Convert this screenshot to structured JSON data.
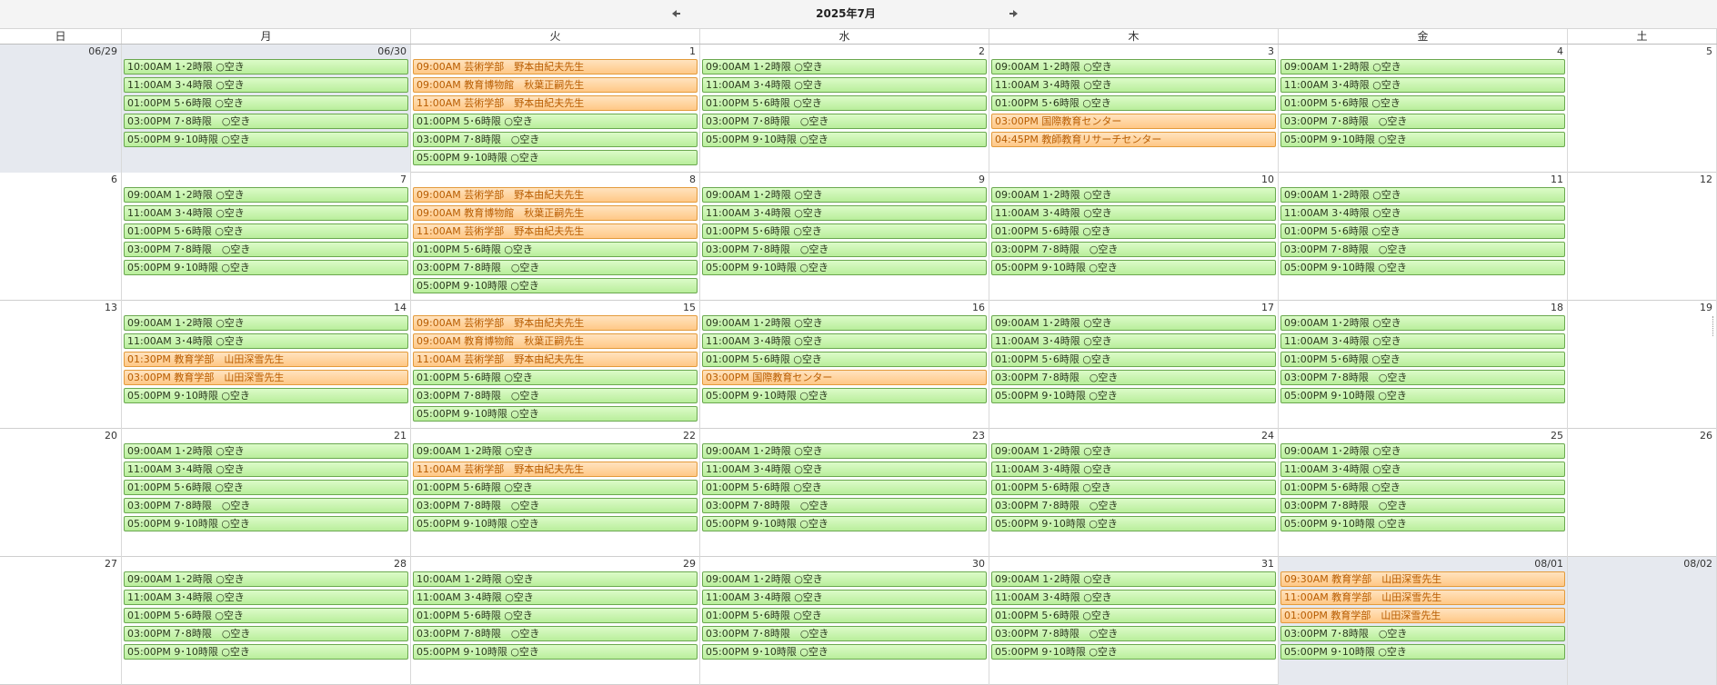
{
  "header": {
    "title": "2025年7月"
  },
  "weekdays": [
    "日",
    "月",
    "火",
    "水",
    "木",
    "金",
    "土"
  ],
  "weeks": [
    {
      "days": [
        {
          "label": "06/29",
          "other": true,
          "events": []
        },
        {
          "label": "06/30",
          "other": true,
          "events": [
            {
              "text": "10:00AM 1･2時限 ○空き",
              "type": "free"
            },
            {
              "text": "11:00AM 3･4時限 ○空き",
              "type": "free"
            },
            {
              "text": "01:00PM 5･6時限 ○空き",
              "type": "free"
            },
            {
              "text": "03:00PM 7･8時限　○空き",
              "type": "free"
            },
            {
              "text": "05:00PM 9･10時限 ○空き",
              "type": "free"
            }
          ]
        },
        {
          "label": "1",
          "other": false,
          "events": [
            {
              "text": "09:00AM 芸術学部　野本由紀夫先生",
              "type": "booked"
            },
            {
              "text": "09:00AM 教育博物館　秋葉正嗣先生",
              "type": "booked"
            },
            {
              "text": "11:00AM 芸術学部　野本由紀夫先生",
              "type": "booked"
            },
            {
              "text": "01:00PM 5･6時限 ○空き",
              "type": "free"
            },
            {
              "text": "03:00PM 7･8時限　○空き",
              "type": "free"
            },
            {
              "text": "05:00PM 9･10時限 ○空き",
              "type": "free"
            }
          ]
        },
        {
          "label": "2",
          "other": false,
          "events": [
            {
              "text": "09:00AM 1･2時限 ○空き",
              "type": "free"
            },
            {
              "text": "11:00AM 3･4時限 ○空き",
              "type": "free"
            },
            {
              "text": "01:00PM 5･6時限 ○空き",
              "type": "free"
            },
            {
              "text": "03:00PM 7･8時限　○空き",
              "type": "free"
            },
            {
              "text": "05:00PM 9･10時限 ○空き",
              "type": "free"
            }
          ]
        },
        {
          "label": "3",
          "other": false,
          "events": [
            {
              "text": "09:00AM 1･2時限 ○空き",
              "type": "free"
            },
            {
              "text": "11:00AM 3･4時限 ○空き",
              "type": "free"
            },
            {
              "text": "01:00PM 5･6時限 ○空き",
              "type": "free"
            },
            {
              "text": "03:00PM 国際教育センター",
              "type": "booked"
            },
            {
              "text": "04:45PM 教師教育リサーチセンター",
              "type": "booked"
            }
          ]
        },
        {
          "label": "4",
          "other": false,
          "events": [
            {
              "text": "09:00AM 1･2時限 ○空き",
              "type": "free"
            },
            {
              "text": "11:00AM 3･4時限 ○空き",
              "type": "free"
            },
            {
              "text": "01:00PM 5･6時限 ○空き",
              "type": "free"
            },
            {
              "text": "03:00PM 7･8時限　○空き",
              "type": "free"
            },
            {
              "text": "05:00PM 9･10時限 ○空き",
              "type": "free"
            }
          ]
        },
        {
          "label": "5",
          "other": false,
          "events": []
        }
      ]
    },
    {
      "days": [
        {
          "label": "6",
          "other": false,
          "events": []
        },
        {
          "label": "7",
          "other": false,
          "events": [
            {
              "text": "09:00AM 1･2時限 ○空き",
              "type": "free"
            },
            {
              "text": "11:00AM 3･4時限 ○空き",
              "type": "free"
            },
            {
              "text": "01:00PM 5･6時限 ○空き",
              "type": "free"
            },
            {
              "text": "03:00PM 7･8時限　○空き",
              "type": "free"
            },
            {
              "text": "05:00PM 9･10時限 ○空き",
              "type": "free"
            }
          ]
        },
        {
          "label": "8",
          "other": false,
          "events": [
            {
              "text": "09:00AM 芸術学部　野本由紀夫先生",
              "type": "booked"
            },
            {
              "text": "09:00AM 教育博物館　秋葉正嗣先生",
              "type": "booked"
            },
            {
              "text": "11:00AM 芸術学部　野本由紀夫先生",
              "type": "booked"
            },
            {
              "text": "01:00PM 5･6時限 ○空き",
              "type": "free"
            },
            {
              "text": "03:00PM 7･8時限　○空き",
              "type": "free"
            },
            {
              "text": "05:00PM 9･10時限 ○空き",
              "type": "free"
            }
          ]
        },
        {
          "label": "9",
          "other": false,
          "events": [
            {
              "text": "09:00AM 1･2時限 ○空き",
              "type": "free"
            },
            {
              "text": "11:00AM 3･4時限 ○空き",
              "type": "free"
            },
            {
              "text": "01:00PM 5･6時限 ○空き",
              "type": "free"
            },
            {
              "text": "03:00PM 7･8時限　○空き",
              "type": "free"
            },
            {
              "text": "05:00PM 9･10時限 ○空き",
              "type": "free"
            }
          ]
        },
        {
          "label": "10",
          "other": false,
          "events": [
            {
              "text": "09:00AM 1･2時限 ○空き",
              "type": "free"
            },
            {
              "text": "11:00AM 3･4時限 ○空き",
              "type": "free"
            },
            {
              "text": "01:00PM 5･6時限 ○空き",
              "type": "free"
            },
            {
              "text": "03:00PM 7･8時限　○空き",
              "type": "free"
            },
            {
              "text": "05:00PM 9･10時限 ○空き",
              "type": "free"
            }
          ]
        },
        {
          "label": "11",
          "other": false,
          "events": [
            {
              "text": "09:00AM 1･2時限 ○空き",
              "type": "free"
            },
            {
              "text": "11:00AM 3･4時限 ○空き",
              "type": "free"
            },
            {
              "text": "01:00PM 5･6時限 ○空き",
              "type": "free"
            },
            {
              "text": "03:00PM 7･8時限　○空き",
              "type": "free"
            },
            {
              "text": "05:00PM 9･10時限 ○空き",
              "type": "free"
            }
          ]
        },
        {
          "label": "12",
          "other": false,
          "events": []
        }
      ]
    },
    {
      "days": [
        {
          "label": "13",
          "other": false,
          "events": []
        },
        {
          "label": "14",
          "other": false,
          "events": [
            {
              "text": "09:00AM 1･2時限 ○空き",
              "type": "free"
            },
            {
              "text": "11:00AM 3･4時限 ○空き",
              "type": "free"
            },
            {
              "text": "01:30PM 教育学部　山田深雪先生",
              "type": "booked"
            },
            {
              "text": "03:00PM 教育学部　山田深雪先生",
              "type": "booked"
            },
            {
              "text": "05:00PM 9･10時限 ○空き",
              "type": "free"
            }
          ]
        },
        {
          "label": "15",
          "other": false,
          "events": [
            {
              "text": "09:00AM 芸術学部　野本由紀夫先生",
              "type": "booked"
            },
            {
              "text": "09:00AM 教育博物館　秋葉正嗣先生",
              "type": "booked"
            },
            {
              "text": "11:00AM 芸術学部　野本由紀夫先生",
              "type": "booked"
            },
            {
              "text": "01:00PM 5･6時限 ○空き",
              "type": "free"
            },
            {
              "text": "03:00PM 7･8時限　○空き",
              "type": "free"
            },
            {
              "text": "05:00PM 9･10時限 ○空き",
              "type": "free"
            }
          ]
        },
        {
          "label": "16",
          "other": false,
          "events": [
            {
              "text": "09:00AM 1･2時限 ○空き",
              "type": "free"
            },
            {
              "text": "11:00AM 3･4時限 ○空き",
              "type": "free"
            },
            {
              "text": "01:00PM 5･6時限 ○空き",
              "type": "free"
            },
            {
              "text": "03:00PM 国際教育センター",
              "type": "booked"
            },
            {
              "text": "05:00PM 9･10時限 ○空き",
              "type": "free"
            }
          ]
        },
        {
          "label": "17",
          "other": false,
          "events": [
            {
              "text": "09:00AM 1･2時限 ○空き",
              "type": "free"
            },
            {
              "text": "11:00AM 3･4時限 ○空き",
              "type": "free"
            },
            {
              "text": "01:00PM 5･6時限 ○空き",
              "type": "free"
            },
            {
              "text": "03:00PM 7･8時限　○空き",
              "type": "free"
            },
            {
              "text": "05:00PM 9･10時限 ○空き",
              "type": "free"
            }
          ]
        },
        {
          "label": "18",
          "other": false,
          "events": [
            {
              "text": "09:00AM 1･2時限 ○空き",
              "type": "free"
            },
            {
              "text": "11:00AM 3･4時限 ○空き",
              "type": "free"
            },
            {
              "text": "01:00PM 5･6時限 ○空き",
              "type": "free"
            },
            {
              "text": "03:00PM 7･8時限　○空き",
              "type": "free"
            },
            {
              "text": "05:00PM 9･10時限 ○空き",
              "type": "free"
            }
          ]
        },
        {
          "label": "19",
          "other": false,
          "events": []
        }
      ]
    },
    {
      "days": [
        {
          "label": "20",
          "other": false,
          "events": []
        },
        {
          "label": "21",
          "other": false,
          "events": [
            {
              "text": "09:00AM 1･2時限 ○空き",
              "type": "free"
            },
            {
              "text": "11:00AM 3･4時限 ○空き",
              "type": "free"
            },
            {
              "text": "01:00PM 5･6時限 ○空き",
              "type": "free"
            },
            {
              "text": "03:00PM 7･8時限　○空き",
              "type": "free"
            },
            {
              "text": "05:00PM 9･10時限 ○空き",
              "type": "free"
            }
          ]
        },
        {
          "label": "22",
          "other": false,
          "events": [
            {
              "text": "09:00AM 1･2時限 ○空き",
              "type": "free"
            },
            {
              "text": "11:00AM 芸術学部　野本由紀夫先生",
              "type": "booked"
            },
            {
              "text": "01:00PM 5･6時限 ○空き",
              "type": "free"
            },
            {
              "text": "03:00PM 7･8時限　○空き",
              "type": "free"
            },
            {
              "text": "05:00PM 9･10時限 ○空き",
              "type": "free"
            }
          ]
        },
        {
          "label": "23",
          "other": false,
          "events": [
            {
              "text": "09:00AM 1･2時限 ○空き",
              "type": "free"
            },
            {
              "text": "11:00AM 3･4時限 ○空き",
              "type": "free"
            },
            {
              "text": "01:00PM 5･6時限 ○空き",
              "type": "free"
            },
            {
              "text": "03:00PM 7･8時限　○空き",
              "type": "free"
            },
            {
              "text": "05:00PM 9･10時限 ○空き",
              "type": "free"
            }
          ]
        },
        {
          "label": "24",
          "other": false,
          "events": [
            {
              "text": "09:00AM 1･2時限 ○空き",
              "type": "free"
            },
            {
              "text": "11:00AM 3･4時限 ○空き",
              "type": "free"
            },
            {
              "text": "01:00PM 5･6時限 ○空き",
              "type": "free"
            },
            {
              "text": "03:00PM 7･8時限　○空き",
              "type": "free"
            },
            {
              "text": "05:00PM 9･10時限 ○空き",
              "type": "free"
            }
          ]
        },
        {
          "label": "25",
          "other": false,
          "events": [
            {
              "text": "09:00AM 1･2時限 ○空き",
              "type": "free"
            },
            {
              "text": "11:00AM 3･4時限 ○空き",
              "type": "free"
            },
            {
              "text": "01:00PM 5･6時限 ○空き",
              "type": "free"
            },
            {
              "text": "03:00PM 7･8時限　○空き",
              "type": "free"
            },
            {
              "text": "05:00PM 9･10時限 ○空き",
              "type": "free"
            }
          ]
        },
        {
          "label": "26",
          "other": false,
          "events": []
        }
      ]
    },
    {
      "days": [
        {
          "label": "27",
          "other": false,
          "events": []
        },
        {
          "label": "28",
          "other": false,
          "events": [
            {
              "text": "09:00AM 1･2時限 ○空き",
              "type": "free"
            },
            {
              "text": "11:00AM 3･4時限 ○空き",
              "type": "free"
            },
            {
              "text": "01:00PM 5･6時限 ○空き",
              "type": "free"
            },
            {
              "text": "03:00PM 7･8時限　○空き",
              "type": "free"
            },
            {
              "text": "05:00PM 9･10時限 ○空き",
              "type": "free"
            }
          ]
        },
        {
          "label": "29",
          "other": false,
          "events": [
            {
              "text": "10:00AM 1･2時限 ○空き",
              "type": "free"
            },
            {
              "text": "11:00AM 3･4時限 ○空き",
              "type": "free"
            },
            {
              "text": "01:00PM 5･6時限 ○空き",
              "type": "free"
            },
            {
              "text": "03:00PM 7･8時限　○空き",
              "type": "free"
            },
            {
              "text": "05:00PM 9･10時限 ○空き",
              "type": "free"
            }
          ]
        },
        {
          "label": "30",
          "other": false,
          "events": [
            {
              "text": "09:00AM 1･2時限 ○空き",
              "type": "free"
            },
            {
              "text": "11:00AM 3･4時限 ○空き",
              "type": "free"
            },
            {
              "text": "01:00PM 5･6時限 ○空き",
              "type": "free"
            },
            {
              "text": "03:00PM 7･8時限　○空き",
              "type": "free"
            },
            {
              "text": "05:00PM 9･10時限 ○空き",
              "type": "free"
            }
          ]
        },
        {
          "label": "31",
          "other": false,
          "events": [
            {
              "text": "09:00AM 1･2時限 ○空き",
              "type": "free"
            },
            {
              "text": "11:00AM 3･4時限 ○空き",
              "type": "free"
            },
            {
              "text": "01:00PM 5･6時限 ○空き",
              "type": "free"
            },
            {
              "text": "03:00PM 7･8時限　○空き",
              "type": "free"
            },
            {
              "text": "05:00PM 9･10時限 ○空き",
              "type": "free"
            }
          ]
        },
        {
          "label": "08/01",
          "other": true,
          "events": [
            {
              "text": "09:30AM 教育学部　山田深雪先生",
              "type": "booked"
            },
            {
              "text": "11:00AM 教育学部　山田深雪先生",
              "type": "booked"
            },
            {
              "text": "01:00PM 教育学部　山田深雪先生",
              "type": "booked"
            },
            {
              "text": "03:00PM 7･8時限　○空き",
              "type": "free"
            },
            {
              "text": "05:00PM 9･10時限 ○空き",
              "type": "free"
            }
          ]
        },
        {
          "label": "08/02",
          "other": true,
          "events": []
        }
      ]
    }
  ]
}
